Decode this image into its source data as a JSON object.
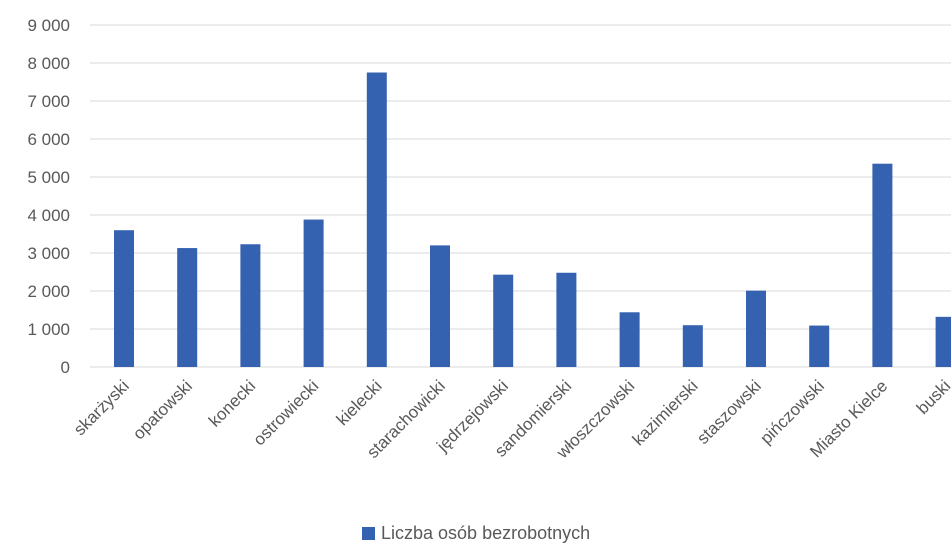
{
  "chart_data": {
    "type": "bar",
    "categories": [
      "skarżyski",
      "opatowski",
      "konecki",
      "ostrowiecki",
      "kielecki",
      "starachowicki",
      "jędrzejowski",
      "sandomierski",
      "włoszczowski",
      "kazimierski",
      "staszowski",
      "pińczowski",
      "Miasto Kielce",
      "buski"
    ],
    "series": [
      {
        "name": "Liczba osób bezrobotnych",
        "values": [
          3600,
          3130,
          3230,
          3880,
          7750,
          3200,
          2430,
          2480,
          1440,
          1100,
          2010,
          1090,
          5350,
          1320
        ],
        "color": "#3461b0"
      }
    ],
    "yticks": [
      "0",
      "1 000",
      "2 000",
      "3 000",
      "4 000",
      "5 000",
      "6 000",
      "7 000",
      "8 000",
      "9 000"
    ],
    "ylim": [
      0,
      9000
    ],
    "grid": true,
    "legend_position": "bottom"
  }
}
